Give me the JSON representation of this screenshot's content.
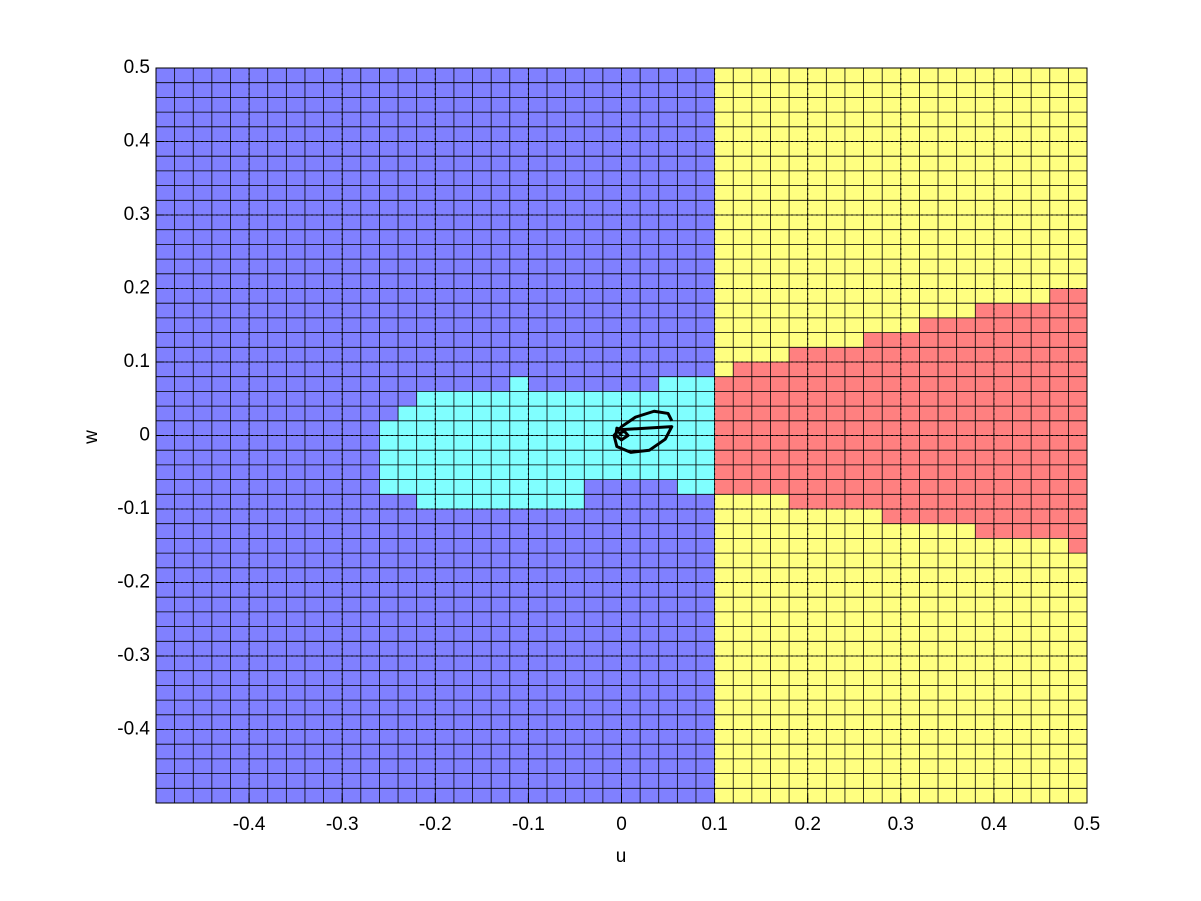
{
  "chart_data": {
    "type": "region-map",
    "x_label": "u",
    "y_label": "w",
    "xlim": [
      -0.5,
      0.5
    ],
    "ylim": [
      -0.5,
      0.5
    ],
    "xticks": [
      -0.4,
      -0.3,
      -0.2,
      -0.1,
      0,
      0.1,
      0.2,
      0.3,
      0.4,
      0.5
    ],
    "yticks": [
      -0.4,
      -0.3,
      -0.2,
      -0.1,
      0,
      0.1,
      0.2,
      0.3,
      0.4,
      0.5
    ],
    "grid": true,
    "cell_size": 0.02,
    "regions": [
      {
        "color": "#8080ff",
        "u": [
          -0.5,
          0.1,
          0.1,
          -0.5
        ],
        "w": [
          -0.5,
          -0.5,
          0.5,
          0.5
        ]
      },
      {
        "color": "#ffff80",
        "u": [
          0.1,
          0.5,
          0.5,
          0.1
        ],
        "w": [
          -0.5,
          -0.5,
          0.5,
          0.5
        ]
      },
      {
        "color": "#80ffff",
        "u": [
          -0.26,
          -0.24,
          -0.24,
          -0.22,
          -0.22,
          -0.12,
          -0.12,
          -0.1,
          -0.1,
          0.04,
          0.04,
          0.1,
          0.1,
          0.06,
          0.06,
          -0.04,
          -0.04,
          -0.22,
          -0.22,
          -0.26
        ],
        "w": [
          0.02,
          0.02,
          0.04,
          0.04,
          0.06,
          0.06,
          0.08,
          0.08,
          0.06,
          0.06,
          0.08,
          0.08,
          -0.08,
          -0.08,
          -0.06,
          -0.06,
          -0.1,
          -0.1,
          -0.08,
          -0.08
        ]
      },
      {
        "color": "#ff8080",
        "u": [
          0.1,
          0.12,
          0.12,
          0.18,
          0.18,
          0.26,
          0.26,
          0.32,
          0.32,
          0.38,
          0.38,
          0.46,
          0.46,
          0.5,
          0.5,
          0.48,
          0.48,
          0.38,
          0.38,
          0.28,
          0.28,
          0.18,
          0.18,
          0.1
        ],
        "w": [
          0.08,
          0.08,
          0.1,
          0.1,
          0.12,
          0.12,
          0.14,
          0.14,
          0.16,
          0.16,
          0.18,
          0.18,
          0.2,
          0.2,
          -0.16,
          -0.16,
          -0.14,
          -0.14,
          -0.12,
          -0.12,
          -0.1,
          -0.1,
          -0.08,
          -0.08
        ]
      }
    ],
    "trajectory": {
      "color": "#000000",
      "u": [
        0.054,
        0.05,
        0.035,
        0.015,
        0.0,
        -0.008,
        -0.005,
        0.01,
        0.03,
        0.047,
        0.054,
        0.0,
        -0.005,
        -0.006,
        0.0,
        0.007,
        0.003,
        -0.002,
        0
      ],
      "w": [
        0.02,
        0.03,
        0.033,
        0.025,
        0.012,
        0.0,
        -0.015,
        -0.023,
        -0.02,
        -0.005,
        0.012,
        0.008,
        0.01,
        0.0,
        -0.006,
        0.0,
        0.006,
        0.003,
        0
      ]
    }
  }
}
